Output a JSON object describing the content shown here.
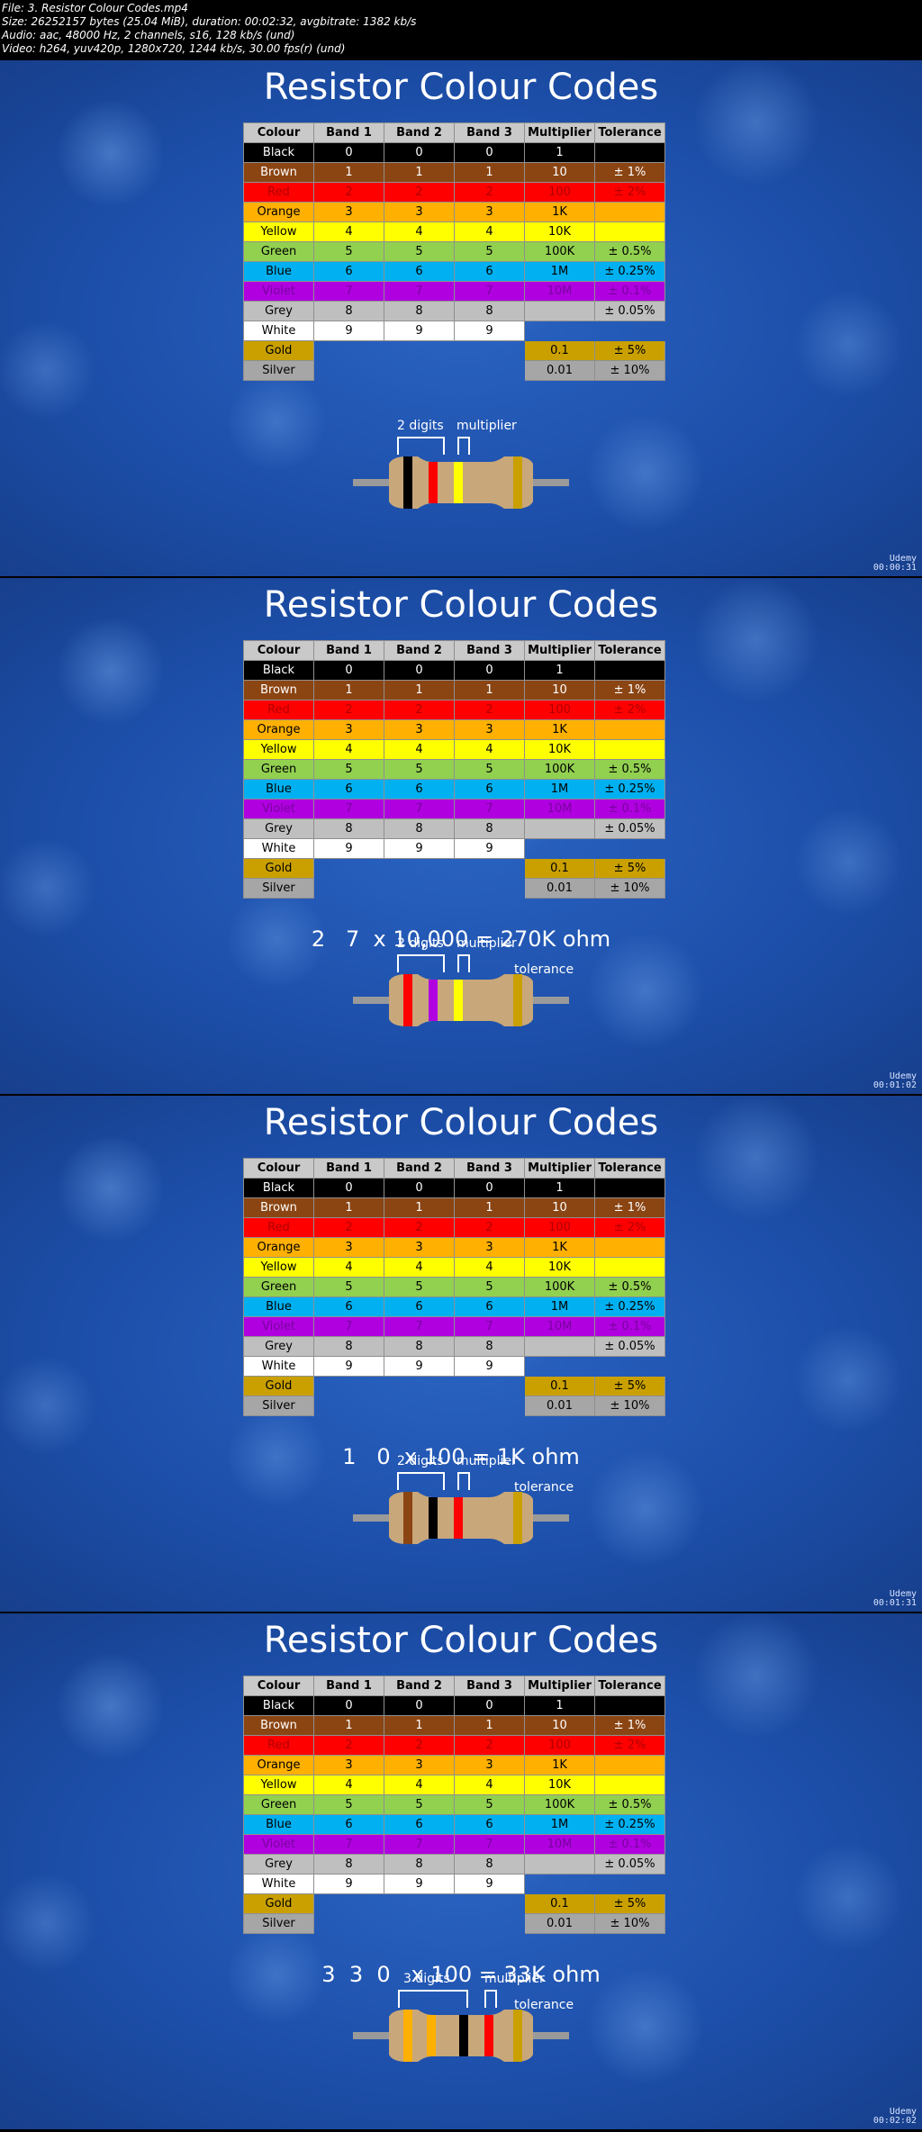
{
  "header": {
    "lines": [
      "File: 3. Resistor Colour Codes.mp4",
      "Size: 26252157 bytes (25.04 MiB), duration: 00:02:32, avgbitrate: 1382 kb/s",
      "Audio: aac, 48000 Hz, 2 channels, s16, 128 kb/s (und)",
      "Video: h264, yuv420p, 1280x720, 1244 kb/s, 30.00 fps(r) (und)"
    ]
  },
  "title": "Resistor Colour Codes",
  "columns": [
    "Colour",
    "Band 1",
    "Band 2",
    "Band 3",
    "Multiplier",
    "Tolerance"
  ],
  "rows": [
    {
      "name": "Black",
      "bg": "#000000",
      "fg": "#ffffff",
      "b1": "0",
      "b2": "0",
      "b3": "0",
      "mult": "1",
      "tol": "",
      "multbg": "#000000",
      "tolbg": "#000000"
    },
    {
      "name": "Brown",
      "bg": "#8b4513",
      "fg": "#ffffff",
      "b1": "1",
      "b2": "1",
      "b3": "1",
      "mult": "10",
      "tol": "± 1%",
      "multbg": "#8b4513",
      "tolbg": "#8b4513"
    },
    {
      "name": "Red",
      "bg": "#ff0000",
      "fg": "#b00000",
      "b1": "2",
      "b2": "2",
      "b3": "2",
      "mult": "100",
      "tol": "± 2%",
      "multbg": "#ff0000",
      "tolbg": "#ff0000"
    },
    {
      "name": "Orange",
      "bg": "#ffb000",
      "fg": "#000000",
      "b1": "3",
      "b2": "3",
      "b3": "3",
      "mult": "1K",
      "tol": "",
      "multbg": "#ffb000",
      "tolbg": "#ffb000"
    },
    {
      "name": "Yellow",
      "bg": "#ffff00",
      "fg": "#000000",
      "b1": "4",
      "b2": "4",
      "b3": "4",
      "mult": "10K",
      "tol": "",
      "multbg": "#ffff00",
      "tolbg": "#ffff00"
    },
    {
      "name": "Green",
      "bg": "#92d050",
      "fg": "#000000",
      "b1": "5",
      "b2": "5",
      "b3": "5",
      "mult": "100K",
      "tol": "± 0.5%",
      "multbg": "#92d050",
      "tolbg": "#92d050"
    },
    {
      "name": "Blue",
      "bg": "#00b0f0",
      "fg": "#000000",
      "b1": "6",
      "b2": "6",
      "b3": "6",
      "mult": "1M",
      "tol": "± 0.25%",
      "multbg": "#00b0f0",
      "tolbg": "#00b0f0"
    },
    {
      "name": "Violet",
      "bg": "#b000e0",
      "fg": "#7a00a0",
      "b1": "7",
      "b2": "7",
      "b3": "7",
      "mult": "10M",
      "tol": "± 0.1%",
      "multbg": "#b000e0",
      "tolbg": "#b000e0"
    },
    {
      "name": "Grey",
      "bg": "#bfbfbf",
      "fg": "#000000",
      "b1": "8",
      "b2": "8",
      "b3": "8",
      "mult": "",
      "tol": "± 0.05%",
      "multbg": "#bfbfbf",
      "tolbg": "#bfbfbf"
    },
    {
      "name": "White",
      "bg": "#ffffff",
      "fg": "#000000",
      "b1": "9",
      "b2": "9",
      "b3": "9",
      "mult": "",
      "tol": "",
      "multbg": "",
      "tolbg": ""
    },
    {
      "name": "Gold",
      "bg": "#c9a000",
      "fg": "#000000",
      "b1": "",
      "b2": "",
      "b3": "",
      "mult": "0.1",
      "tol": "± 5%",
      "multbg": "#c9a000",
      "tolbg": "#c9a000"
    },
    {
      "name": "Silver",
      "bg": "#a6a6a6",
      "fg": "#000000",
      "b1": "",
      "b2": "",
      "b3": "",
      "mult": "0.01",
      "tol": "± 10%",
      "multbg": "#a6a6a6",
      "tolbg": "#a6a6a6"
    }
  ],
  "frames": [
    {
      "formula": "",
      "digits_label": "2 digits",
      "multiplier_label": "multiplier",
      "tolerance_label": "",
      "timestamp": "00:00:31",
      "bands": [
        "#000000",
        "#ff0000",
        "#ffff00",
        "#c9a000"
      ]
    },
    {
      "formula": "2   7  x 10,000 = 270K ohm",
      "digits_label": "2 digits",
      "multiplier_label": "multiplier",
      "tolerance_label": "tolerance",
      "timestamp": "00:01:02",
      "bands": [
        "#ff0000",
        "#b000e0",
        "#ffff00",
        "#c9a000"
      ]
    },
    {
      "formula": "1   0  x 100 = 1K ohm",
      "digits_label": "2 digits",
      "multiplier_label": "multiplier",
      "tolerance_label": "tolerance",
      "timestamp": "00:01:31",
      "bands": [
        "#8b4513",
        "#000000",
        "#ff0000",
        "#c9a000"
      ]
    },
    {
      "formula": "3  3  0   x 100 = 33K ohm",
      "digits_label": "3 digits",
      "multiplier_label": "multiplier",
      "tolerance_label": "tolerance",
      "timestamp": "00:02:02",
      "bands": [
        "#ffb000",
        "#ffb000",
        "#000000",
        "#ff0000",
        "#c9a000"
      ]
    }
  ],
  "logo_text": "Udemy"
}
